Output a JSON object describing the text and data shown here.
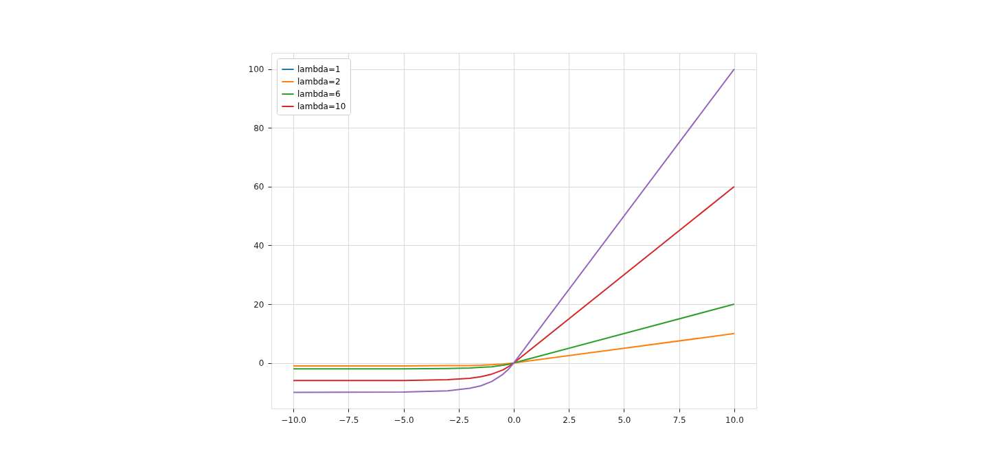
{
  "chart_data": {
    "type": "line",
    "x": [
      -10,
      -5,
      -3,
      -2,
      -1.5,
      -1,
      -0.5,
      -0.25,
      0,
      10
    ],
    "series": [
      {
        "name": "lambda=1",
        "color": "#1f77b4",
        "values": [
          null,
          null,
          null,
          null,
          null,
          null,
          null,
          null,
          null,
          null
        ]
      },
      {
        "name": "lambda=2",
        "color": "#ff7f0e",
        "values": [
          -1,
          -1,
          -0.9,
          -0.9,
          -0.8,
          -0.6,
          -0.4,
          -0.2,
          0,
          10
        ]
      },
      {
        "name": "lambda=6",
        "color": "#2ca02c",
        "values": [
          -2,
          -2,
          -1.9,
          -1.7,
          -1.5,
          -1.3,
          -0.8,
          -0.5,
          0,
          20
        ]
      },
      {
        "name": "lambda=10",
        "color": "#d62728",
        "values": [
          -6,
          -6,
          -5.7,
          -5.2,
          -4.7,
          -3.8,
          -2.4,
          -1.3,
          0,
          60
        ]
      },
      {
        "color": "#9467bd",
        "values": [
          -10,
          -9.9,
          -9.5,
          -8.6,
          -7.8,
          -6.3,
          -3.9,
          -2.2,
          0,
          100
        ]
      }
    ],
    "xlim": [
      -11,
      11
    ],
    "xticks": [
      {
        "value": -10,
        "label": "−10.0"
      },
      {
        "value": -7.5,
        "label": "−7.5"
      },
      {
        "value": -5,
        "label": "−5.0"
      },
      {
        "value": -2.5,
        "label": "−2.5"
      },
      {
        "value": 0,
        "label": "0.0"
      },
      {
        "value": 2.5,
        "label": "2.5"
      },
      {
        "value": 5,
        "label": "5.0"
      },
      {
        "value": 7.5,
        "label": "7.5"
      },
      {
        "value": 10,
        "label": "10.0"
      }
    ],
    "ylim": [
      -15.5,
      105.5
    ],
    "yticks": [
      0,
      20,
      40,
      60,
      80,
      100
    ],
    "grid": true,
    "legend": "top left",
    "line_style": "solid",
    "marker": "none"
  }
}
